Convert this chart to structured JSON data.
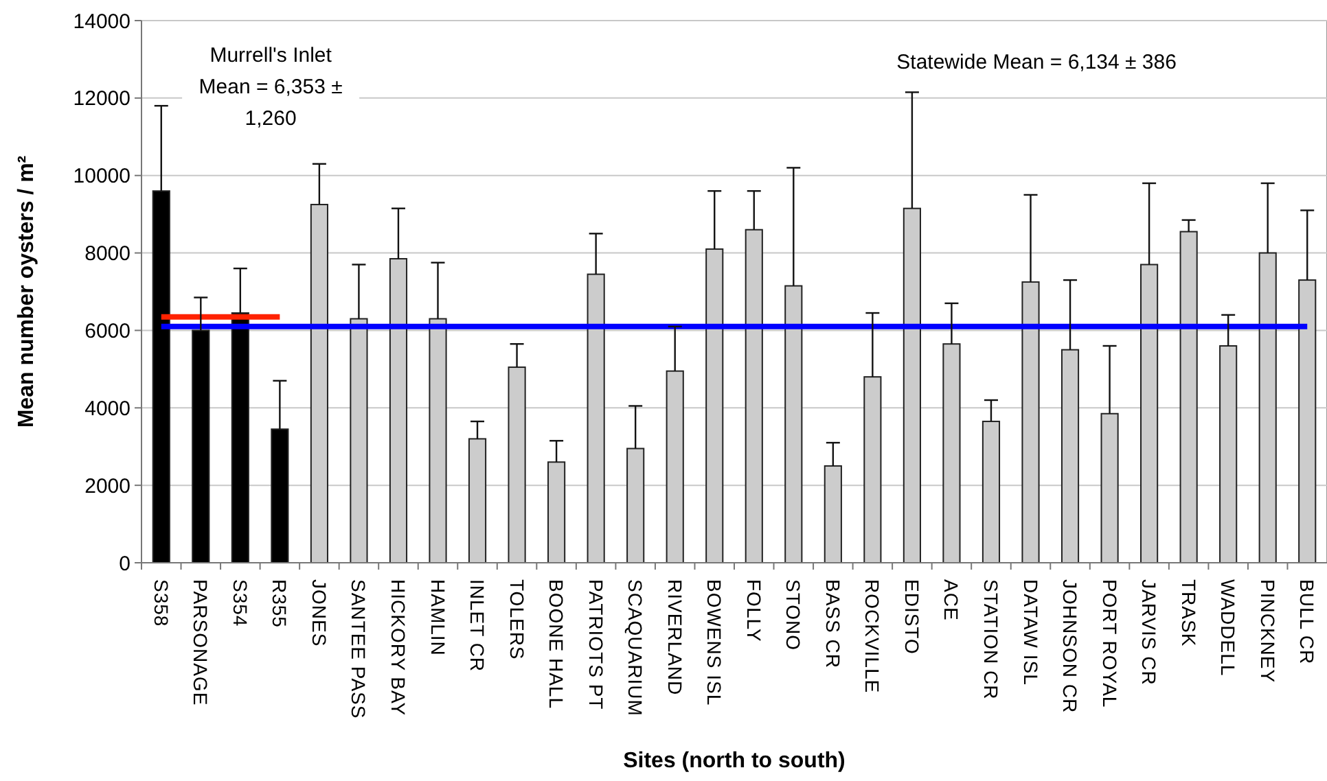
{
  "chart_data": {
    "type": "bar",
    "xlabel": "Sites (north to south)",
    "ylabel": "Mean number oysters / m²",
    "categories": [
      "S358",
      "PARSONAGE",
      "S354",
      "R355",
      "JONES",
      "SANTEE PASS",
      "HICKORY BAY",
      "HAMLIN",
      "INLET CR",
      "TOLERS",
      "BOONE HALL",
      "PATRIOTS PT",
      "SCAQUARIUM",
      "RIVERLAND",
      "BOWENS ISL",
      "FOLLY",
      "STONO",
      "BASS CR",
      "ROCKVILLE",
      "EDISTO",
      "ACE",
      "STATION CR",
      "DATAW ISL",
      "JOHNSON CR",
      "PORT ROYAL",
      "JARVIS CR",
      "TRASK",
      "WADDELL",
      "PINCKNEY",
      "BULL CR"
    ],
    "series": [
      {
        "values": [
          9600,
          6000,
          6450,
          3450,
          9250,
          6300,
          7850,
          6300,
          3200,
          5050,
          2600,
          7450,
          2950,
          4950,
          8100,
          8600,
          7150,
          2500,
          4800,
          9150,
          5650,
          3650,
          7250,
          5500,
          3850,
          7700,
          8550,
          5600,
          8000,
          7300
        ],
        "colors": [
          "#000000",
          "#000000",
          "#000000",
          "#000000",
          "#cccccc",
          "#cccccc",
          "#cccccc",
          "#cccccc",
          "#cccccc",
          "#cccccc",
          "#cccccc",
          "#cccccc",
          "#cccccc",
          "#cccccc",
          "#cccccc",
          "#cccccc",
          "#cccccc",
          "#cccccc",
          "#cccccc",
          "#cccccc",
          "#cccccc",
          "#cccccc",
          "#cccccc",
          "#cccccc",
          "#cccccc",
          "#cccccc",
          "#cccccc",
          "#cccccc",
          "#cccccc",
          "#cccccc"
        ],
        "errors": [
          [
            9600,
            11800
          ],
          [
            6000,
            6850
          ],
          [
            6450,
            7600
          ],
          [
            3450,
            4700
          ],
          [
            9250,
            10300
          ],
          [
            6300,
            7700
          ],
          [
            7850,
            9150
          ],
          [
            6300,
            7750
          ],
          [
            3200,
            3650
          ],
          [
            5050,
            5650
          ],
          [
            2600,
            3150
          ],
          [
            7450,
            8500
          ],
          [
            2950,
            4050
          ],
          [
            4950,
            6100
          ],
          [
            8100,
            9600
          ],
          [
            8600,
            9600
          ],
          [
            7150,
            10200
          ],
          [
            2500,
            3100
          ],
          [
            4800,
            6450
          ],
          [
            9150,
            12150
          ],
          [
            5650,
            6700
          ],
          [
            3650,
            4200
          ],
          [
            7250,
            9500
          ],
          [
            5500,
            7300
          ],
          [
            3850,
            5600
          ],
          [
            7700,
            9800
          ],
          [
            8550,
            8850
          ],
          [
            5600,
            6400
          ],
          [
            8000,
            9800
          ],
          [
            7300,
            9100
          ]
        ]
      },
      {
        "type": "line",
        "color": "#0000ff",
        "values": [
          6100,
          6100,
          6100,
          6100,
          6100,
          6100,
          6100,
          6100,
          6100,
          6100,
          6100,
          6100,
          6100,
          6100,
          6100,
          6100,
          6100,
          6100,
          6100,
          6100,
          6100,
          6100,
          6100,
          6100,
          6100,
          6100,
          6100,
          6100,
          6100,
          6100
        ]
      },
      {
        "type": "line",
        "color": "#ff2200",
        "values": [
          6350,
          6350,
          6350,
          6350,
          null,
          null,
          null,
          null,
          null,
          null,
          null,
          null,
          null,
          null,
          null,
          null,
          null,
          null,
          null,
          null,
          null,
          null,
          null,
          null,
          null,
          null,
          null,
          null,
          null,
          null
        ]
      }
    ],
    "annotations": [
      "Murrell's Inlet\nMean = 6,353 ±\n1,260",
      "Statewide Mean = 6,134 ± 386"
    ],
    "ylim": [
      0,
      14000
    ],
    "yticks": [
      0,
      2000,
      4000,
      6000,
      8000,
      10000,
      12000,
      14000
    ],
    "grid": "y",
    "marker": "none",
    "line_style": "solid"
  }
}
